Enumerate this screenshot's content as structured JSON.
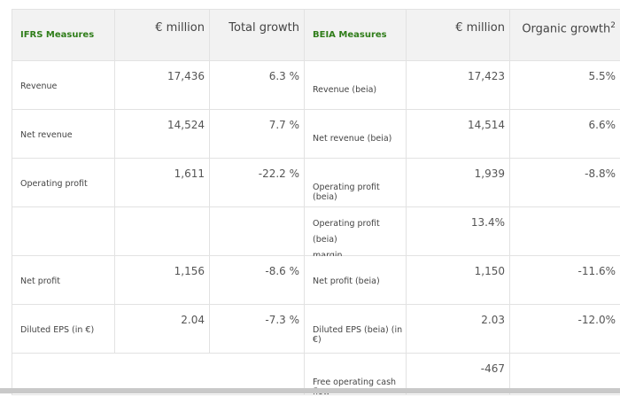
{
  "header": {
    "ifrs": "IFRS Measures",
    "eur_million_1": "€ million",
    "total_growth": "Total growth",
    "beia": "BEIA Measures",
    "eur_million_2": "€ million",
    "organic_growth": "Organic growth",
    "organic_growth_note": "2"
  },
  "rows": [
    {
      "ifrs_label": "Revenue",
      "ifrs_value": "17,436",
      "total_growth": "6.3 %",
      "beia_label": "Revenue (beia)",
      "beia_value": "17,423",
      "organic_growth": "5.5%"
    },
    {
      "ifrs_label": "Net revenue",
      "ifrs_value": "14,524",
      "total_growth": "7.7 %",
      "beia_label": "Net revenue (beia)",
      "beia_value": "14,514",
      "organic_growth": "6.6%"
    },
    {
      "ifrs_label": "Operating profit",
      "ifrs_value": "1,611",
      "total_growth": "-22.2 %",
      "beia_label": "Operating profit (beia)",
      "beia_value": "1,939",
      "organic_growth": "-8.8%"
    },
    {
      "ifrs_label": "",
      "ifrs_value": "",
      "total_growth": "",
      "beia_label_line1": "Operating profit (beia)",
      "beia_label_line2": "margin",
      "beia_value": "13.4%",
      "organic_growth": ""
    },
    {
      "ifrs_label": "Net profit",
      "ifrs_value": "1,156",
      "total_growth": "-8.6 %",
      "beia_label": "Net profit (beia)",
      "beia_value": "1,150",
      "organic_growth": "-11.6%"
    },
    {
      "ifrs_label": "Diluted EPS (in €)",
      "ifrs_value": "2.04",
      "total_growth": "-7.3 %",
      "beia_label": "Diluted EPS (beia) (in €)",
      "beia_value": "2.03",
      "organic_growth": "-12.0%"
    },
    {
      "beia_label": "Free operating cash flow",
      "beia_value": "-467"
    }
  ]
}
